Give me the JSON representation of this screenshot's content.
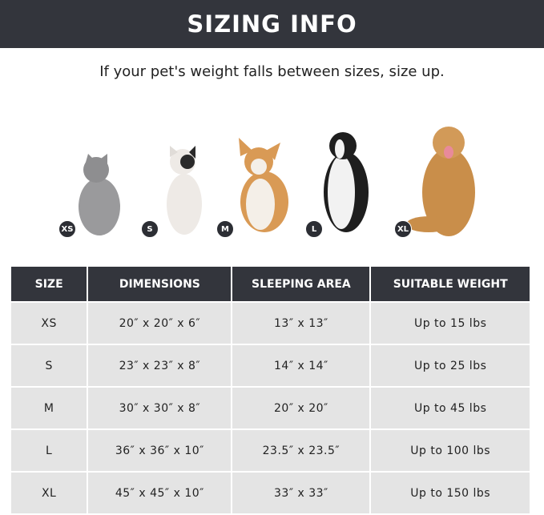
{
  "title": "SIZING INFO",
  "subtitle": "If your pet's weight falls between sizes, size up.",
  "pets": [
    {
      "badge": "XS",
      "animal": "gray cat",
      "color": "#9a9a9c"
    },
    {
      "badge": "S",
      "animal": "french bulldog",
      "color": "#eeeae6"
    },
    {
      "badge": "M",
      "animal": "corgi",
      "color": "#d99a55"
    },
    {
      "badge": "L",
      "animal": "border collie",
      "color": "#1e1e1e"
    },
    {
      "badge": "XL",
      "animal": "golden retriever",
      "color": "#c98e4a"
    }
  ],
  "table": {
    "headers": [
      "SIZE",
      "DIMENSIONS",
      "SLEEPING AREA",
      "SUITABLE WEIGHT"
    ],
    "rows": [
      [
        "XS",
        "20″ x 20″ x 6″",
        "13″ x 13″",
        "Up to 15 lbs"
      ],
      [
        "S",
        "23″ x 23″ x 8″",
        "14″ x 14″",
        "Up to 25 lbs"
      ],
      [
        "M",
        "30″ x 30″ x 8″",
        "20″ x 20″",
        "Up to 45 lbs"
      ],
      [
        "L",
        "36″ x 36″ x 10″",
        "23.5″ x 23.5″",
        "Up to 100 lbs"
      ],
      [
        "XL",
        "45″ x 45″ x 10″",
        "33″ x 33″",
        "Up to 150 lbs"
      ]
    ]
  },
  "colors": {
    "header_bg": "#33353c",
    "row_bg": "#e4e4e4"
  }
}
